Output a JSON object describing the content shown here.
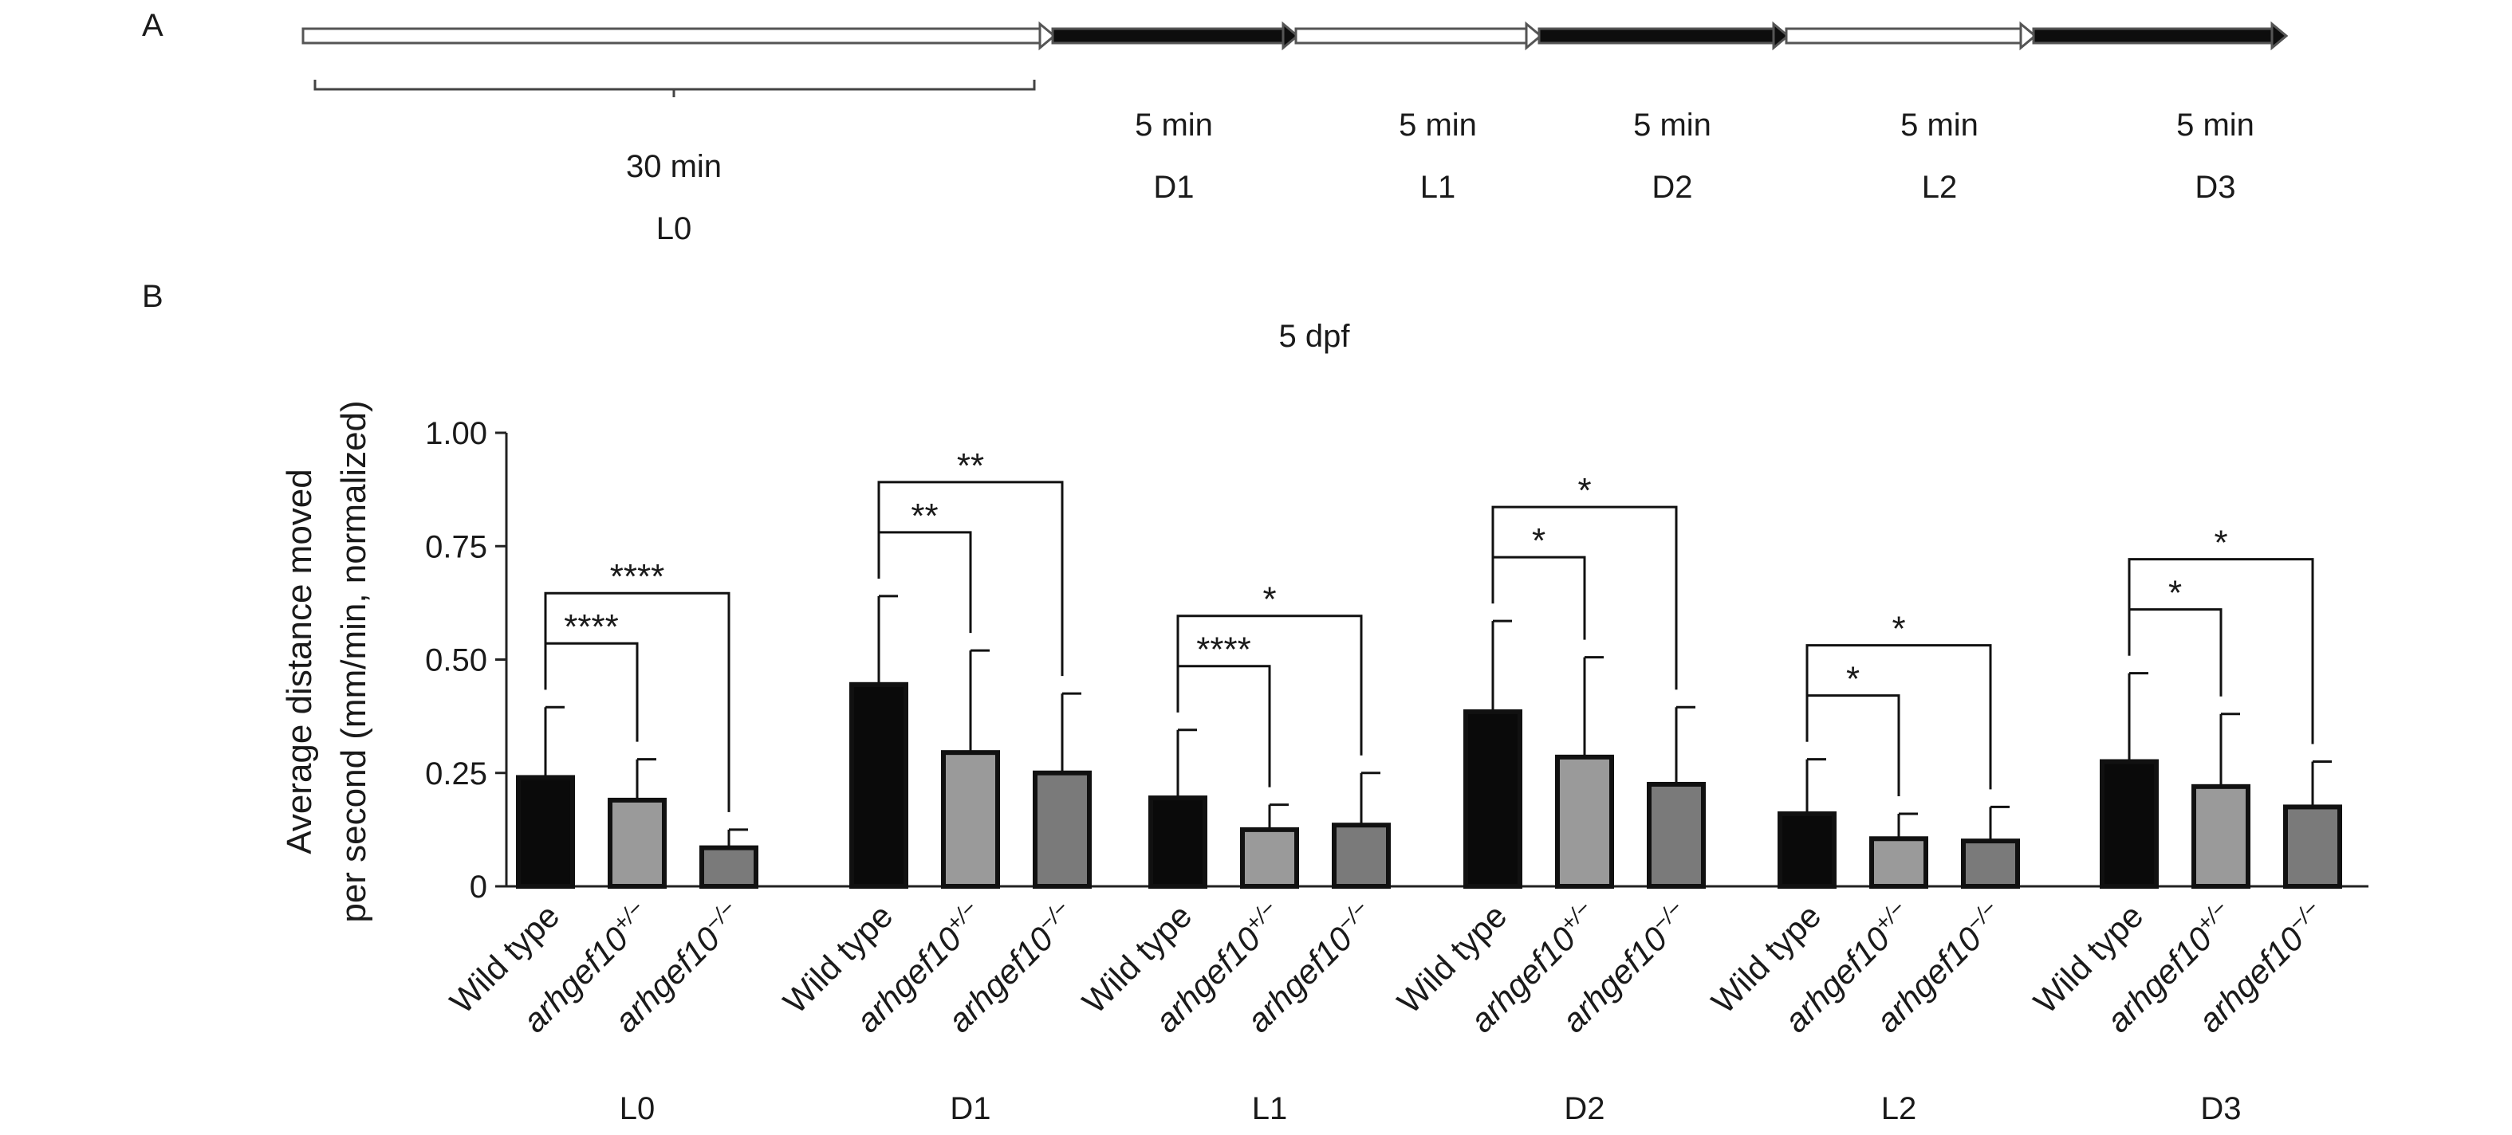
{
  "panel_a": {
    "label": "A",
    "phases": [
      {
        "id": "L0",
        "duration": "30 min",
        "type": "light"
      },
      {
        "id": "D1",
        "duration": "5 min",
        "type": "dark"
      },
      {
        "id": "L1",
        "duration": "5 min",
        "type": "light"
      },
      {
        "id": "D2",
        "duration": "5 min",
        "type": "dark"
      },
      {
        "id": "L2",
        "duration": "5 min",
        "type": "light"
      },
      {
        "id": "D3",
        "duration": "5 min",
        "type": "dark"
      }
    ]
  },
  "panel_b": {
    "label": "B"
  },
  "chart_data": {
    "type": "bar",
    "title": "5 dpf",
    "ylabel_line1": "Average distance moved",
    "ylabel_line2": "per second (mm/min, normalized)",
    "ylim": [
      0,
      1.0
    ],
    "yticks": [
      "0",
      "0.25",
      "0.50",
      "0.75",
      "1.00"
    ],
    "ytick_values": [
      0,
      0.25,
      0.5,
      0.75,
      1.0
    ],
    "genotypes": [
      {
        "prefix": "Wild type",
        "sup": "",
        "italic": false,
        "color": "#0a0a0a"
      },
      {
        "prefix": "arhgef10",
        "sup": "+/−",
        "italic": true,
        "color": "#9a9a9a"
      },
      {
        "prefix": "arhgef10",
        "sup": "−/−",
        "italic": true,
        "color": "#7a7a7a"
      }
    ],
    "groups": [
      {
        "name": "L0",
        "values": [
          0.24,
          0.19,
          0.085
        ],
        "errors": [
          0.155,
          0.09,
          0.04
        ],
        "sig": [
          {
            "to": 1,
            "label": "****"
          },
          {
            "to": 2,
            "label": "****"
          }
        ]
      },
      {
        "name": "D1",
        "values": [
          0.445,
          0.295,
          0.25
        ],
        "errors": [
          0.195,
          0.225,
          0.175
        ],
        "sig": [
          {
            "to": 1,
            "label": "**"
          },
          {
            "to": 2,
            "label": "**"
          }
        ]
      },
      {
        "name": "L1",
        "values": [
          0.195,
          0.125,
          0.135
        ],
        "errors": [
          0.15,
          0.055,
          0.115
        ],
        "sig": [
          {
            "to": 1,
            "label": "****"
          },
          {
            "to": 2,
            "label": "*"
          }
        ]
      },
      {
        "name": "D2",
        "values": [
          0.385,
          0.285,
          0.225
        ],
        "errors": [
          0.2,
          0.22,
          0.17
        ],
        "sig": [
          {
            "to": 1,
            "label": "*"
          },
          {
            "to": 2,
            "label": "*"
          }
        ]
      },
      {
        "name": "L2",
        "values": [
          0.16,
          0.105,
          0.1
        ],
        "errors": [
          0.12,
          0.055,
          0.075
        ],
        "sig": [
          {
            "to": 1,
            "label": "*"
          },
          {
            "to": 2,
            "label": "*"
          }
        ]
      },
      {
        "name": "D3",
        "values": [
          0.275,
          0.22,
          0.175
        ],
        "errors": [
          0.195,
          0.16,
          0.1
        ],
        "sig": [
          {
            "to": 1,
            "label": "*"
          },
          {
            "to": 2,
            "label": "*"
          }
        ]
      }
    ]
  }
}
